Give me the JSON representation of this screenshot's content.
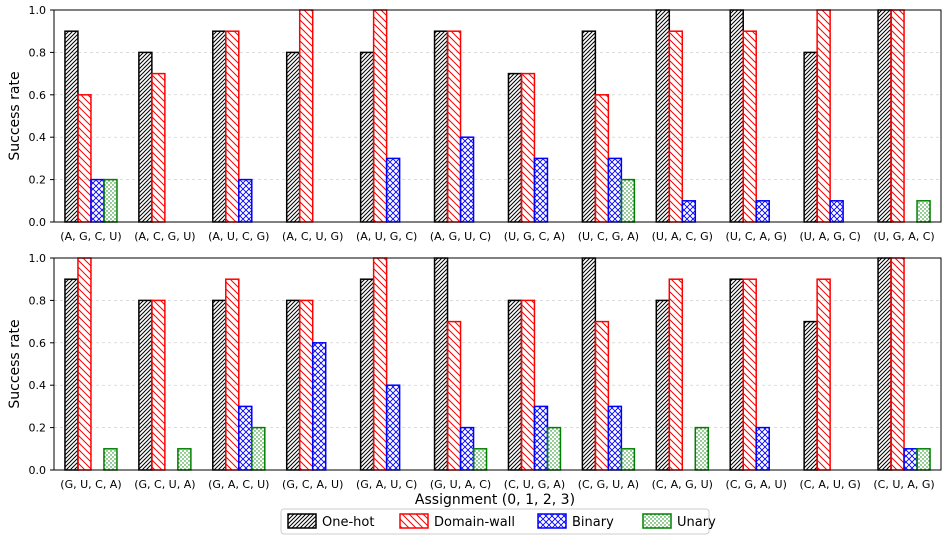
{
  "chart_data": [
    {
      "type": "bar",
      "ylabel": "Success rate",
      "xlabel": "",
      "ylim": [
        0,
        1.0
      ],
      "yticks": [
        "0.0",
        "0.2",
        "0.4",
        "0.6",
        "0.8",
        "1.0"
      ],
      "grid": "horizontal dashed",
      "categories": [
        "(A, G, C, U)",
        "(A, C, G, U)",
        "(A, U, C, G)",
        "(A, C, U, G)",
        "(A, U, G, C)",
        "(A, G, U, C)",
        "(U, G, C, A)",
        "(U, C, G, A)",
        "(U, A, C, G)",
        "(U, C, A, G)",
        "(U, A, G, C)",
        "(U, G, A, C)"
      ],
      "series": [
        {
          "name": "One-hot",
          "values": [
            0.9,
            0.8,
            0.9,
            0.8,
            0.8,
            0.9,
            0.7,
            0.9,
            1.0,
            1.0,
            0.8,
            1.0
          ]
        },
        {
          "name": "Domain-wall",
          "values": [
            0.6,
            0.7,
            0.9,
            1.0,
            1.0,
            0.9,
            0.7,
            0.6,
            0.9,
            0.9,
            1.0,
            1.0
          ]
        },
        {
          "name": "Binary",
          "values": [
            0.2,
            0.0,
            0.2,
            0.0,
            0.3,
            0.4,
            0.3,
            0.3,
            0.1,
            0.1,
            0.1,
            0.0
          ]
        },
        {
          "name": "Unary",
          "values": [
            0.2,
            0.0,
            0.0,
            0.0,
            0.0,
            0.0,
            0.0,
            0.2,
            0.0,
            0.0,
            0.0,
            0.1
          ]
        }
      ]
    },
    {
      "type": "bar",
      "ylabel": "Success rate",
      "xlabel": "Assignment (0, 1, 2, 3)",
      "ylim": [
        0,
        1.0
      ],
      "yticks": [
        "0.0",
        "0.2",
        "0.4",
        "0.6",
        "0.8",
        "1.0"
      ],
      "grid": "horizontal dashed",
      "categories": [
        "(G, U, C, A)",
        "(G, C, U, A)",
        "(G, A, C, U)",
        "(G, C, A, U)",
        "(G, A, U, C)",
        "(G, U, A, C)",
        "(C, U, G, A)",
        "(C, G, U, A)",
        "(C, A, G, U)",
        "(C, G, A, U)",
        "(C, A, U, G)",
        "(C, U, A, G)"
      ],
      "series": [
        {
          "name": "One-hot",
          "values": [
            0.9,
            0.8,
            0.8,
            0.8,
            0.9,
            1.0,
            0.8,
            1.0,
            0.8,
            0.9,
            0.7,
            1.0
          ]
        },
        {
          "name": "Domain-wall",
          "values": [
            1.0,
            0.8,
            0.9,
            0.8,
            1.0,
            0.7,
            0.8,
            0.7,
            0.9,
            0.9,
            0.9,
            1.0
          ]
        },
        {
          "name": "Binary",
          "values": [
            0.0,
            0.0,
            0.3,
            0.6,
            0.4,
            0.2,
            0.3,
            0.3,
            0.0,
            0.2,
            0.0,
            0.1
          ]
        },
        {
          "name": "Unary",
          "values": [
            0.1,
            0.1,
            0.2,
            0.0,
            0.0,
            0.1,
            0.2,
            0.1,
            0.2,
            0.0,
            0.0,
            0.1
          ]
        }
      ]
    }
  ],
  "legend": {
    "position": "bottom-center",
    "items": [
      {
        "label": "One-hot",
        "color": "#000000",
        "hatch": "dense-diagonal"
      },
      {
        "label": "Domain-wall",
        "color": "#ff0000",
        "hatch": "diagonal"
      },
      {
        "label": "Binary",
        "color": "#0000ff",
        "hatch": "cross"
      },
      {
        "label": "Unary",
        "color": "#008000",
        "hatch": "dots"
      }
    ]
  }
}
